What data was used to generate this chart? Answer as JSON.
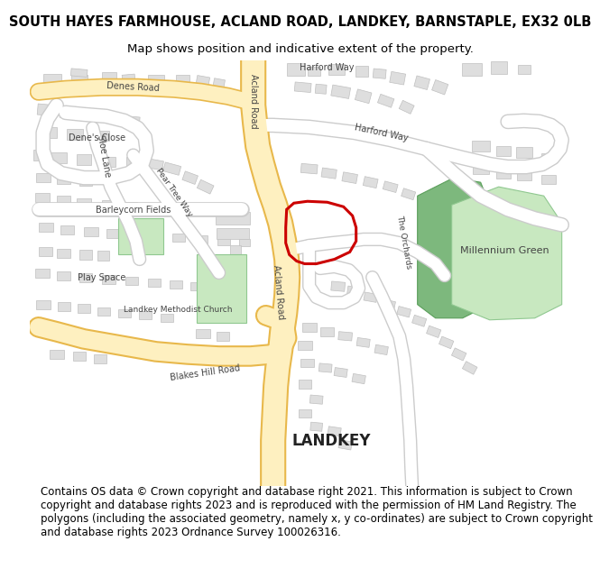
{
  "title_line1": "SOUTH HAYES FARMHOUSE, ACLAND ROAD, LANDKEY, BARNSTAPLE, EX32 0LB",
  "title_line2": "Map shows position and indicative extent of the property.",
  "title_fontsize": 10.5,
  "subtitle_fontsize": 9.5,
  "footer_text": "Contains OS data © Crown copyright and database right 2021. This information is subject to Crown copyright and database rights 2023 and is reproduced with the permission of HM Land Registry. The polygons (including the associated geometry, namely x, y co-ordinates) are subject to Crown copyright and database rights 2023 Ordnance Survey 100026316.",
  "footer_fontsize": 8.5,
  "bg_color": "#ffffff",
  "map_bg": "#ffffff",
  "road_major_fill": "#fef0c0",
  "road_major_outline": "#e8b84b",
  "road_minor_fill": "#ffffff",
  "road_minor_outline": "#cccccc",
  "building_color": "#dedede",
  "building_outline": "#c0c0c0",
  "green_color_dark": "#7db87d",
  "green_color_light": "#c8e8c0",
  "plot_color_stroke": "#cc0000",
  "plot_linewidth": 2.2,
  "road_label_color": "#444444",
  "place_label_color": "#222222"
}
